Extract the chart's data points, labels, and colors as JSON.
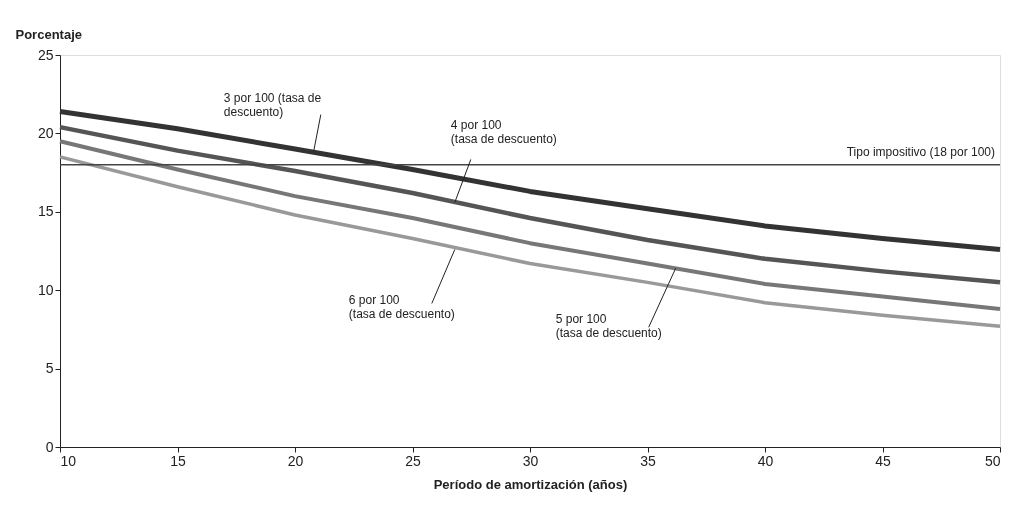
{
  "chart_data": {
    "type": "line",
    "xlabel": "Período de amortización (años)",
    "ylabel": "Porcentaje",
    "x": [
      10,
      15,
      20,
      25,
      30,
      35,
      40,
      45,
      50
    ],
    "series": [
      {
        "color": "#333333",
        "values": [
          21.4,
          20.3,
          19.0,
          17.7,
          16.3,
          15.2,
          14.1,
          13.3,
          12.6
        ]
      },
      {
        "color": "#555555",
        "values": [
          20.4,
          18.9,
          17.6,
          16.2,
          14.6,
          13.2,
          12.0,
          11.2,
          10.5
        ]
      },
      {
        "color": "#777777",
        "values": [
          19.5,
          17.7,
          16.0,
          14.6,
          13.0,
          11.7,
          10.4,
          9.6,
          8.8
        ]
      },
      {
        "color": "#999999",
        "values": [
          18.5,
          16.6,
          14.8,
          13.3,
          11.7,
          10.5,
          9.2,
          8.4,
          7.7
        ]
      }
    ],
    "ref_lines": [
      {
        "axis": "y",
        "value": 18,
        "label": "Tipo impositivo (18 por 100)",
        "color": "#444444"
      }
    ],
    "annotations": [
      {
        "text": "3 por 100 (tasa de\ndescuento)",
        "x": 20.8,
        "y": 18.9
      },
      {
        "text": "4 por 100\n(tasa de descuento)",
        "x": 26.8,
        "y": 15.6
      },
      {
        "text": "6 por 100\n(tasa de descuento)",
        "x": 26.8,
        "y": 12.6
      },
      {
        "text": "5 por 100\n(tasa de descuento)",
        "x": 36.2,
        "y": 11.4
      }
    ],
    "xlim": [
      10,
      50
    ],
    "ylim": [
      0,
      25
    ],
    "xticks": [
      10,
      15,
      20,
      25,
      30,
      35,
      40,
      45,
      50
    ],
    "yticks": [
      0,
      5,
      10,
      15,
      20,
      25
    ],
    "grid": false,
    "legend": false,
    "marker": "none",
    "line_style": "solid"
  }
}
